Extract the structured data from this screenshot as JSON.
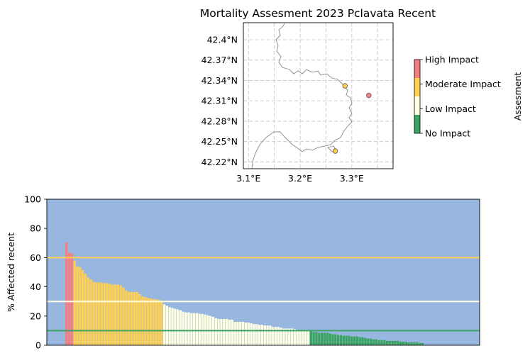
{
  "chart_data": [
    {
      "type": "scatter",
      "title": "Mortality Assesment 2023 Pclavata Recent",
      "xlim": [
        3.09,
        3.38
      ],
      "ylim": [
        42.21,
        42.425
      ],
      "xticks": [
        3.1,
        3.2,
        3.3
      ],
      "xtick_labels": [
        "3.1°E",
        "3.2°E",
        "3.3°E"
      ],
      "yticks": [
        42.22,
        42.25,
        42.28,
        42.31,
        42.34,
        42.37,
        42.4
      ],
      "ytick_labels": [
        "42.22°N",
        "42.25°N",
        "42.28°N",
        "42.31°N",
        "42.34°N",
        "42.37°N",
        "42.4°N"
      ],
      "grid": true,
      "points": [
        {
          "lon": 3.287,
          "lat": 42.332,
          "level": "Moderate Impact"
        },
        {
          "lon": 3.333,
          "lat": 42.318,
          "level": "High Impact"
        },
        {
          "lon": 3.268,
          "lat": 42.236,
          "level": "Moderate Impact"
        }
      ],
      "colorbar": {
        "label": "Assesment",
        "levels": [
          {
            "name": "No Impact",
            "color": "#3ca461"
          },
          {
            "name": "Low Impact",
            "color": "#ffffe0"
          },
          {
            "name": "Moderate Impact",
            "color": "#ffd04f"
          },
          {
            "name": "High Impact",
            "color": "#f57f80"
          }
        ]
      }
    },
    {
      "type": "bar",
      "ylabel": "% Affected recent",
      "ylim": [
        0,
        100
      ],
      "yticks": [
        0,
        20,
        40,
        60,
        80,
        100
      ],
      "background": "#97b6e0",
      "thresholds": [
        {
          "value": 60,
          "color": "#ffd04f"
        },
        {
          "value": 30,
          "color": "#ffffe0"
        },
        {
          "value": 10,
          "color": "#3ca461"
        }
      ],
      "values": [
        70.5,
        63.5,
        63,
        58,
        54,
        53.5,
        51.5,
        49,
        46.5,
        45,
        43.5,
        43,
        43,
        43,
        42.5,
        42.5,
        42,
        41.5,
        41.5,
        41.5,
        41,
        39.5,
        37.5,
        36.5,
        36.5,
        36.5,
        36.5,
        35,
        33.5,
        33,
        32.5,
        32,
        31.5,
        31.5,
        31,
        30.5,
        28,
        27,
        26,
        25.5,
        25,
        24.5,
        24,
        23,
        22.5,
        22.5,
        22,
        22,
        22,
        21.5,
        21.5,
        21,
        20.5,
        20,
        19.5,
        18.5,
        18,
        18,
        18,
        18,
        17.5,
        17.5,
        16,
        16,
        16,
        16,
        15.5,
        15.5,
        15,
        14.5,
        14.5,
        14,
        14,
        13.5,
        13.5,
        13.5,
        12.5,
        12.5,
        12.5,
        12,
        11.5,
        11.5,
        11.5,
        11.5,
        11,
        10.5,
        10.5,
        10.5,
        10.5,
        10,
        9.5,
        9,
        9,
        8.5,
        8.5,
        8.5,
        8.5,
        8,
        7.5,
        7.5,
        7,
        7,
        6.5,
        6.5,
        6.5,
        6,
        6,
        6,
        5.5,
        5.5,
        5,
        4.5,
        4.5,
        4,
        4,
        3.5,
        3.5,
        3.5,
        3,
        3,
        3,
        3,
        3,
        2.5,
        2.5,
        2.5,
        2,
        2,
        2,
        2,
        1.5,
        1.5
      ]
    }
  ]
}
